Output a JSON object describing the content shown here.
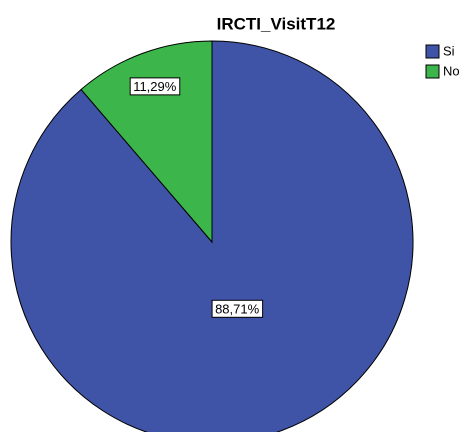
{
  "chart_data": {
    "type": "pie",
    "title": "IRCTI_VisitT12",
    "categories": [
      "Si",
      "No"
    ],
    "values": [
      88.71,
      11.29
    ],
    "value_labels": [
      "88,71%",
      "11,29%"
    ],
    "colors": [
      "#3f54a6",
      "#3cb54a"
    ]
  }
}
